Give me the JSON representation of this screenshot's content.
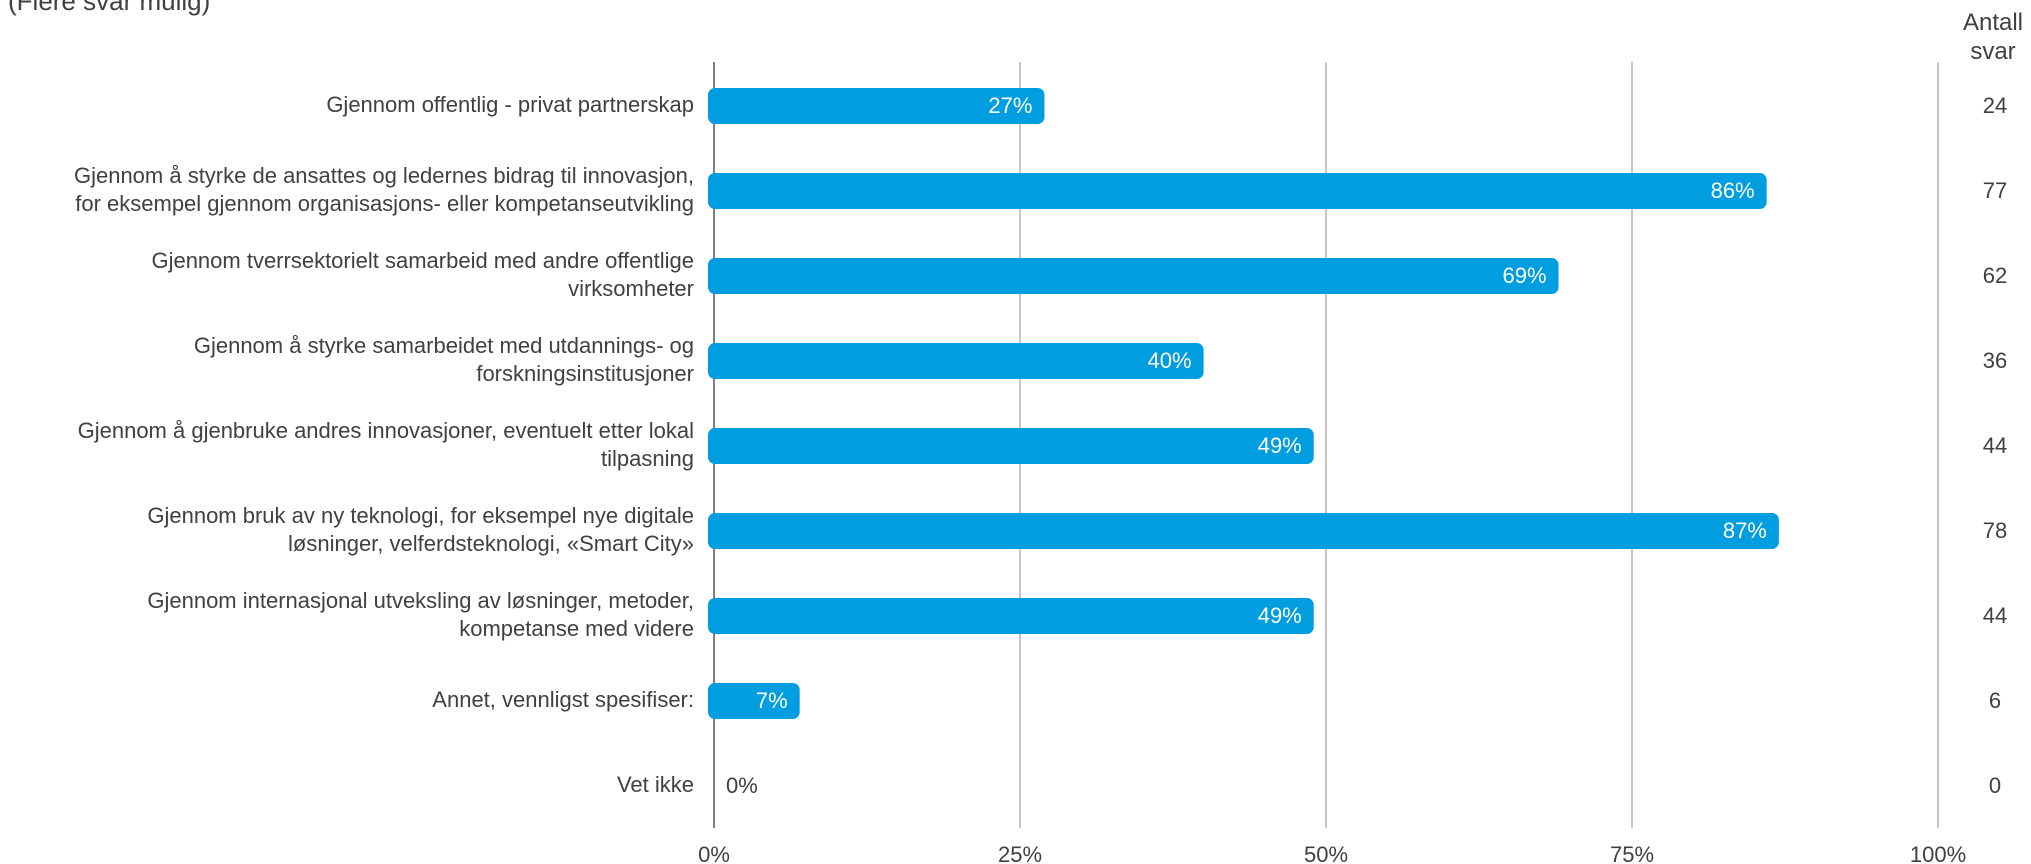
{
  "subtitle": "(Flere svar mulig)",
  "count_header": "Antall svar",
  "colors": {
    "bar": "#009de0",
    "grid": "#b3b3b3",
    "axis": "#808080",
    "text": "#404040"
  },
  "chart_data": {
    "type": "bar",
    "orientation": "horizontal",
    "categories": [
      "Gjennom offentlig - privat partnerskap",
      "Gjennom å styrke de ansattes og ledernes bidrag til innovasjon, for eksempel gjennom organisasjons- eller kompetanseutvikling",
      "Gjennom tverrsektorielt samarbeid med andre offentlige virksomheter",
      "Gjennom å styrke samarbeidet med utdannings- og forskningsinstitusjoner",
      "Gjennom å gjenbruke andres innovasjoner, eventuelt etter lokal tilpasning",
      "Gjennom bruk av ny teknologi, for eksempel nye digitale løsninger, velferdsteknologi, «Smart City»",
      "Gjennom internasjonal utveksling av løsninger, metoder, kompetanse med videre",
      "Annet, vennligst spesifiser:",
      "Vet ikke"
    ],
    "category_lines": [
      [
        "Gjennom offentlig - privat partnerskap"
      ],
      [
        "Gjennom å styrke de ansattes og ledernes bidrag til innovasjon,",
        "for eksempel gjennom organisasjons- eller kompetanseutvikling"
      ],
      [
        "Gjennom tverrsektorielt samarbeid med andre offentlige",
        "virksomheter"
      ],
      [
        "Gjennom å styrke samarbeidet med utdannings- og",
        "forskningsinstitusjoner"
      ],
      [
        "Gjennom å gjenbruke andres innovasjoner, eventuelt etter lokal",
        "tilpasning"
      ],
      [
        "Gjennom bruk av ny teknologi, for eksempel nye digitale",
        "løsninger, velferdsteknologi, «Smart City»"
      ],
      [
        "Gjennom internasjonal utveksling av løsninger, metoder,",
        "kompetanse med videre"
      ],
      [
        "Annet, vennligst spesifiser:"
      ],
      [
        "Vet ikke"
      ]
    ],
    "values": [
      27,
      86,
      69,
      40,
      49,
      87,
      49,
      7,
      0
    ],
    "value_labels": [
      "27%",
      "86%",
      "69%",
      "40%",
      "49%",
      "87%",
      "49%",
      "7%",
      "0%"
    ],
    "counts": [
      24,
      77,
      62,
      36,
      44,
      78,
      44,
      6,
      0
    ],
    "xlim": [
      0,
      100
    ],
    "xticks": [
      0,
      25,
      50,
      75,
      100
    ],
    "xtick_labels": [
      "0%",
      "25%",
      "50%",
      "75%",
      "100%"
    ],
    "grid": true,
    "legend": "none"
  }
}
